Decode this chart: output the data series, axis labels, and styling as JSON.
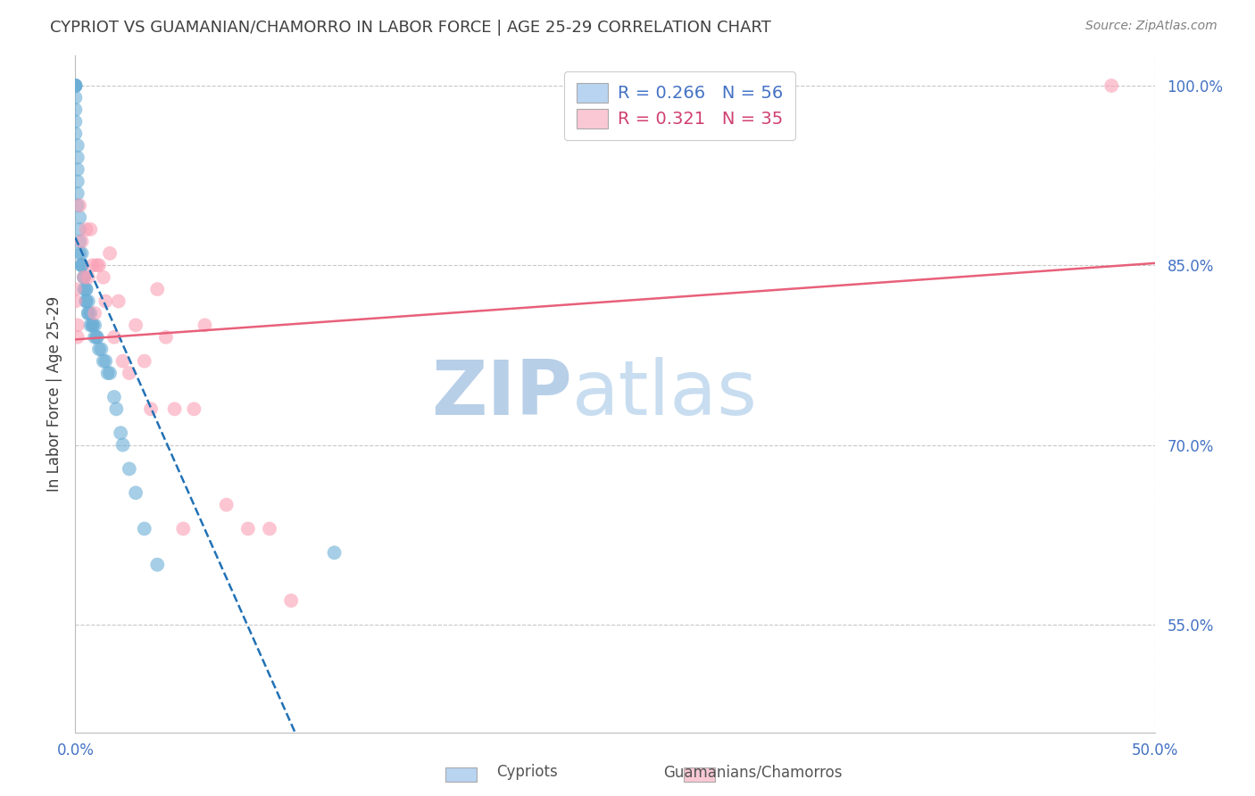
{
  "title": "CYPRIOT VS GUAMANIAN/CHAMORRO IN LABOR FORCE | AGE 25-29 CORRELATION CHART",
  "source": "Source: ZipAtlas.com",
  "ylabel": "In Labor Force | Age 25-29",
  "xmin": 0.0,
  "xmax": 0.5,
  "ymin": 0.46,
  "ymax": 1.025,
  "grid_yticks": [
    0.55,
    0.7,
    0.85,
    1.0
  ],
  "ytick_labels": [
    "55.0%",
    "70.0%",
    "85.0%",
    "100.0%"
  ],
  "xtick_vals": [
    0.0,
    0.1,
    0.2,
    0.3,
    0.4,
    0.5
  ],
  "xtick_labels": [
    "0.0%",
    "",
    "",
    "",
    "",
    "50.0%"
  ],
  "cypriot_color": "#6baed6",
  "guamanian_color": "#fa9fb5",
  "cypriot_line_color": "#2171b5",
  "guamanian_line_color": "#e8607a",
  "legend_box_color_cypriot": "#b8d4f0",
  "legend_box_color_guamanian": "#f9c8d4",
  "R_cypriot": 0.266,
  "N_cypriot": 56,
  "R_guamanian": 0.321,
  "N_guamanian": 35,
  "cypriot_x": [
    0.0,
    0.0,
    0.0,
    0.0,
    0.0,
    0.0,
    0.0,
    0.0,
    0.0,
    0.001,
    0.001,
    0.001,
    0.001,
    0.001,
    0.001,
    0.002,
    0.002,
    0.002,
    0.002,
    0.003,
    0.003,
    0.003,
    0.003,
    0.004,
    0.004,
    0.004,
    0.005,
    0.005,
    0.005,
    0.005,
    0.006,
    0.006,
    0.006,
    0.007,
    0.007,
    0.008,
    0.008,
    0.009,
    0.009,
    0.01,
    0.01,
    0.011,
    0.012,
    0.013,
    0.014,
    0.015,
    0.016,
    0.018,
    0.019,
    0.021,
    0.022,
    0.025,
    0.028,
    0.032,
    0.038,
    0.12
  ],
  "cypriot_y": [
    1.0,
    1.0,
    1.0,
    1.0,
    1.0,
    0.99,
    0.98,
    0.97,
    0.96,
    0.95,
    0.94,
    0.93,
    0.92,
    0.91,
    0.9,
    0.89,
    0.88,
    0.87,
    0.86,
    0.86,
    0.85,
    0.85,
    0.85,
    0.84,
    0.84,
    0.83,
    0.83,
    0.83,
    0.82,
    0.82,
    0.82,
    0.81,
    0.81,
    0.81,
    0.8,
    0.8,
    0.8,
    0.8,
    0.79,
    0.79,
    0.79,
    0.78,
    0.78,
    0.77,
    0.77,
    0.76,
    0.76,
    0.74,
    0.73,
    0.71,
    0.7,
    0.68,
    0.66,
    0.63,
    0.6,
    0.61
  ],
  "guamanian_x": [
    0.0,
    0.0,
    0.001,
    0.001,
    0.002,
    0.003,
    0.004,
    0.005,
    0.006,
    0.007,
    0.008,
    0.009,
    0.01,
    0.011,
    0.013,
    0.014,
    0.016,
    0.018,
    0.02,
    0.022,
    0.025,
    0.028,
    0.032,
    0.035,
    0.038,
    0.042,
    0.046,
    0.05,
    0.055,
    0.06,
    0.07,
    0.08,
    0.09,
    0.1,
    0.48
  ],
  "guamanian_y": [
    0.83,
    0.82,
    0.8,
    0.79,
    0.9,
    0.87,
    0.84,
    0.88,
    0.84,
    0.88,
    0.85,
    0.81,
    0.85,
    0.85,
    0.84,
    0.82,
    0.86,
    0.79,
    0.82,
    0.77,
    0.76,
    0.8,
    0.77,
    0.73,
    0.83,
    0.79,
    0.73,
    0.63,
    0.73,
    0.8,
    0.65,
    0.63,
    0.63,
    0.57,
    1.0
  ],
  "background_color": "#ffffff",
  "watermark_zip": "ZIP",
  "watermark_atlas": "atlas",
  "watermark_color": "#d8eaf8",
  "tick_color": "#4472c4",
  "grid_color": "#c8c8c8",
  "title_color": "#404040",
  "source_color": "#808080",
  "ylabel_color": "#404040"
}
